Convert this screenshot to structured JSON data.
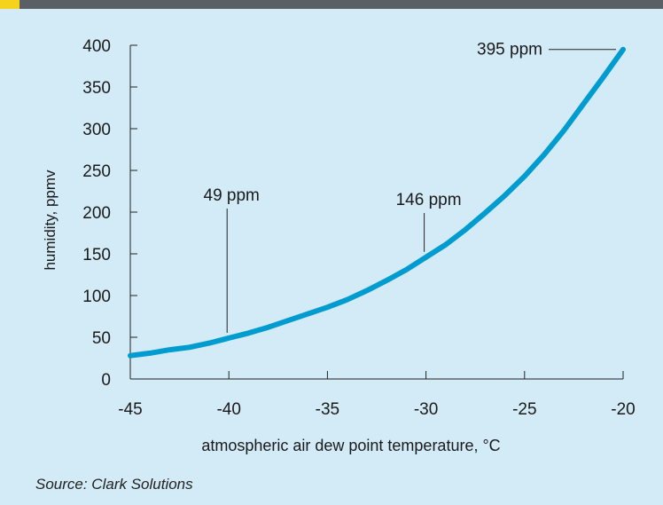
{
  "header": {
    "bar_color": "#5a5f66",
    "accent_color": "#f5d31a"
  },
  "source": "Source: Clark Solutions",
  "chart_data": {
    "type": "line",
    "title": "",
    "xlabel": "atmospheric air dew point temperature, °C",
    "ylabel": "humidity, ppmv",
    "xlim": [
      -45,
      -20
    ],
    "ylim": [
      0,
      400
    ],
    "x_ticks": [
      -45,
      -40,
      -35,
      -30,
      -25,
      -20
    ],
    "y_ticks": [
      0,
      50,
      100,
      150,
      200,
      250,
      300,
      350,
      400
    ],
    "grid": false,
    "line_color": "#009cd0",
    "background_color": "#d3ebf7",
    "series": [
      {
        "x": [
          -45,
          -44,
          -43,
          -42,
          -41,
          -40,
          -39,
          -38,
          -37,
          -36,
          -35,
          -34,
          -33,
          -32,
          -31,
          -30,
          -29,
          -28,
          -27,
          -26,
          -25,
          -24,
          -23,
          -22,
          -21,
          -20
        ],
        "values": [
          28,
          31,
          35,
          38,
          43,
          49,
          55,
          62,
          70,
          78,
          86,
          95,
          106,
          118,
          131,
          146,
          161,
          179,
          199,
          220,
          243,
          269,
          298,
          330,
          362,
          395
        ]
      }
    ],
    "annotations": [
      {
        "label": "49 ppm",
        "x": -40,
        "y": 49
      },
      {
        "label": "146 ppm",
        "x": -30,
        "y": 146
      },
      {
        "label": "395 ppm",
        "x": -20,
        "y": 395
      }
    ]
  }
}
